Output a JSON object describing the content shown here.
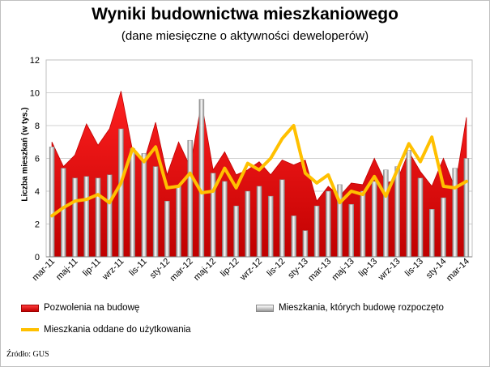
{
  "chart_data": {
    "type": "area",
    "title": "Wyniki budownictwa mieszkaniowego",
    "subtitle": "(dane miesięczne o aktywności deweloperów)",
    "ylabel": "Liczba mieszkań (w tys.)",
    "ylim": [
      0,
      12
    ],
    "yticks": [
      "0",
      "2",
      "4",
      "6",
      "8",
      "10",
      "12"
    ],
    "grid": true,
    "legend_placement": "bottom",
    "xtick_labels": [
      "mar-11",
      "maj-11",
      "lip-11",
      "wrz-11",
      "lis-11",
      "sty-12",
      "mar-12",
      "maj-12",
      "lip-12",
      "wrz-12",
      "lis-12",
      "sty-13",
      "mar-13",
      "maj-13",
      "lip-13",
      "wrz-13",
      "lis-13",
      "sty-14",
      "mar-14"
    ],
    "x": [
      "mar-11",
      "kwi-11",
      "maj-11",
      "cze-11",
      "lip-11",
      "sie-11",
      "wrz-11",
      "paź-11",
      "lis-11",
      "gru-11",
      "sty-12",
      "lut-12",
      "mar-12",
      "kwi-12",
      "maj-12",
      "cze-12",
      "lip-12",
      "sie-12",
      "wrz-12",
      "paź-12",
      "lis-12",
      "gru-12",
      "sty-13",
      "lut-13",
      "mar-13",
      "kwi-13",
      "maj-13",
      "cze-13",
      "lip-13",
      "sie-13",
      "wrz-13",
      "paź-13",
      "lis-13",
      "gru-13",
      "sty-14",
      "lut-14",
      "mar-14"
    ],
    "series": [
      {
        "name": "Pozwolenia na budowę",
        "type": "area",
        "color": "#e00000",
        "values": [
          7.0,
          5.5,
          6.2,
          8.1,
          6.8,
          7.8,
          10.1,
          6.5,
          5.8,
          8.2,
          5.0,
          7.0,
          5.5,
          9.4,
          5.3,
          6.4,
          5.0,
          5.3,
          5.8,
          5.0,
          5.9,
          5.6,
          5.9,
          3.4,
          4.3,
          3.7,
          4.5,
          4.4,
          6.0,
          4.5,
          4.7,
          6.4,
          5.2,
          4.3,
          6.0,
          4.2,
          8.5
        ]
      },
      {
        "name": "Mieszkania, których budowę rozpoczęto",
        "type": "bar",
        "color": "#a6a6a6",
        "values": [
          6.7,
          5.4,
          4.8,
          4.9,
          4.8,
          5.0,
          7.8,
          6.6,
          6.3,
          5.5,
          3.4,
          4.3,
          7.1,
          9.6,
          5.1,
          4.6,
          3.1,
          4.0,
          4.3,
          3.7,
          4.7,
          2.5,
          1.6,
          3.1,
          4.0,
          4.4,
          3.2,
          4.0,
          4.6,
          5.3,
          5.5,
          6.5,
          4.8,
          2.9,
          3.6,
          5.4,
          6.0
        ]
      },
      {
        "name": "Mieszkania oddane do użytkowania",
        "type": "line",
        "color": "#ffc000",
        "values": [
          2.5,
          3.0,
          3.4,
          3.5,
          3.8,
          3.3,
          4.5,
          6.6,
          5.8,
          6.7,
          4.2,
          4.3,
          5.1,
          3.9,
          4.0,
          5.4,
          4.2,
          5.7,
          5.3,
          6.0,
          7.2,
          8.0,
          5.1,
          4.5,
          5.0,
          3.3,
          4.0,
          3.8,
          4.9,
          3.7,
          5.3,
          6.9,
          5.8,
          7.3,
          4.3,
          4.2,
          4.6
        ]
      }
    ]
  },
  "legend": {
    "red_label": "Pozwolenia na budowę",
    "gray_label": "Mieszkania, których budowę rozpoczęto",
    "line_label": "Mieszkania oddane do użytkowania"
  },
  "source": "Źródło: GUS",
  "colors": {
    "red": "#e00000",
    "red_dark": "#c00000",
    "gray": "#a6a6a6",
    "line": "#ffc000",
    "grid": "#d0d0d0"
  }
}
